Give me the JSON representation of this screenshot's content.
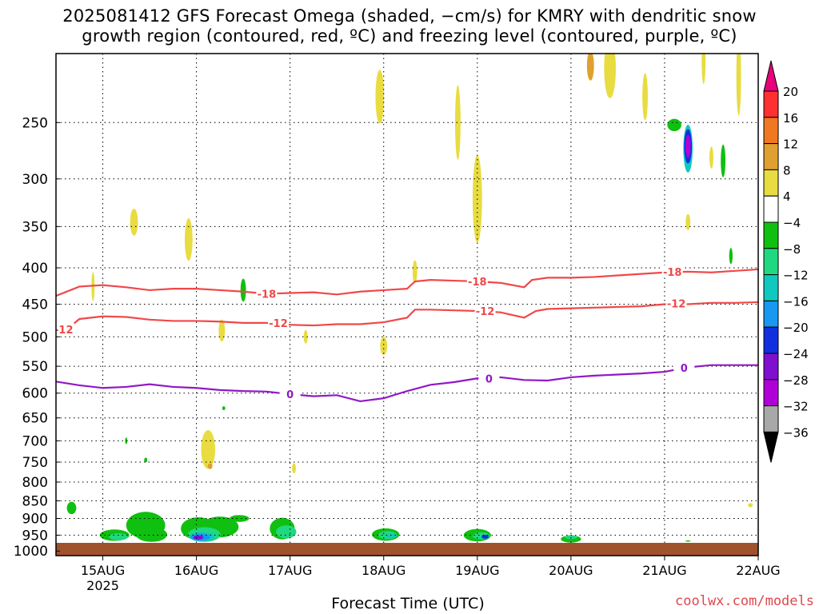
{
  "title": {
    "line1": "2025081412 GFS Forecast Omega (shaded, −cm/s) for KMRY with dendritic snow",
    "line2": "growth region (contoured, red, ºC) and freezing level (contoured, purple, ºC)"
  },
  "credit": "coolwx.com/models",
  "chart_data": {
    "type": "heatmap",
    "xlabel": "Forecast Time (UTC)",
    "ylabel": "",
    "x_ticks": [
      "15AUG",
      "16AUG",
      "17AUG",
      "18AUG",
      "19AUG",
      "20AUG",
      "21AUG",
      "22AUG"
    ],
    "x_year_label": "2025",
    "x_range_hours": [
      -12,
      168
    ],
    "y_ticks": [
      250,
      300,
      350,
      400,
      450,
      500,
      550,
      600,
      650,
      700,
      750,
      800,
      850,
      900,
      950,
      1000
    ],
    "y_range_hpa": [
      200,
      1015
    ],
    "y_scale": "pressure (hPa), decreasing upward",
    "grid": true,
    "colorbar": {
      "labels": [
        "20",
        "16",
        "12",
        "8",
        "4",
        "−4",
        "−8",
        "−12",
        "−16",
        "−20",
        "−24",
        "−28",
        "−32",
        "−36"
      ],
      "colors": [
        "#e8007a",
        "#ff3030",
        "#f07820",
        "#e0a030",
        "#e8dc40",
        "#ffffff",
        "#10c010",
        "#20d880",
        "#10c8c0",
        "#1898f0",
        "#1030e0",
        "#8010d0",
        "#b000d8",
        "#a8a8a8",
        "#000000"
      ]
    },
    "contours": [
      {
        "name": "-18",
        "color": "#f04848",
        "values_hpa": [
          [
            -12,
            438
          ],
          [
            -6,
            425
          ],
          [
            0,
            423
          ],
          [
            6,
            426
          ],
          [
            12,
            430
          ],
          [
            18,
            428
          ],
          [
            24,
            428
          ],
          [
            30,
            430
          ],
          [
            36,
            432
          ],
          [
            42,
            435
          ],
          [
            48,
            434
          ],
          [
            54,
            433
          ],
          [
            60,
            436
          ],
          [
            66,
            432
          ],
          [
            72,
            430
          ],
          [
            78,
            428
          ],
          [
            80,
            418
          ],
          [
            84,
            416
          ],
          [
            90,
            417
          ],
          [
            96,
            418
          ],
          [
            102,
            420
          ],
          [
            108,
            426
          ],
          [
            110,
            416
          ],
          [
            114,
            413
          ],
          [
            120,
            413
          ],
          [
            126,
            412
          ],
          [
            132,
            410
          ],
          [
            138,
            408
          ],
          [
            144,
            406
          ],
          [
            150,
            405
          ],
          [
            156,
            406
          ],
          [
            162,
            404
          ],
          [
            168,
            402
          ]
        ],
        "labels": [
          {
            "text": "-18",
            "x": 42,
            "p": 435
          },
          {
            "text": "-18",
            "x": 96,
            "p": 418
          },
          {
            "text": "-18",
            "x": 146,
            "p": 405
          }
        ]
      },
      {
        "name": "-12",
        "color": "#f04848",
        "values_hpa": [
          [
            -12,
            488
          ],
          [
            -8,
            482
          ],
          [
            -6,
            472
          ],
          [
            0,
            468
          ],
          [
            6,
            469
          ],
          [
            12,
            473
          ],
          [
            18,
            475
          ],
          [
            24,
            475
          ],
          [
            30,
            476
          ],
          [
            36,
            478
          ],
          [
            42,
            478
          ],
          [
            48,
            481
          ],
          [
            54,
            482
          ],
          [
            60,
            480
          ],
          [
            66,
            480
          ],
          [
            72,
            477
          ],
          [
            78,
            470
          ],
          [
            80,
            458
          ],
          [
            84,
            458
          ],
          [
            90,
            459
          ],
          [
            96,
            460
          ],
          [
            102,
            462
          ],
          [
            108,
            470
          ],
          [
            111,
            460
          ],
          [
            114,
            457
          ],
          [
            120,
            456
          ],
          [
            126,
            455
          ],
          [
            132,
            454
          ],
          [
            138,
            453
          ],
          [
            144,
            450
          ],
          [
            150,
            450
          ],
          [
            156,
            448
          ],
          [
            162,
            448
          ],
          [
            168,
            447
          ]
        ],
        "labels": [
          {
            "text": "-12",
            "x": -10,
            "p": 488
          },
          {
            "text": "-12",
            "x": 45,
            "p": 478
          },
          {
            "text": "-12",
            "x": 98,
            "p": 460
          },
          {
            "text": "-12",
            "x": 147,
            "p": 449
          }
        ]
      },
      {
        "name": "0",
        "color": "#9018c8",
        "values_hpa": [
          [
            -12,
            578
          ],
          [
            -6,
            585
          ],
          [
            0,
            590
          ],
          [
            6,
            588
          ],
          [
            12,
            583
          ],
          [
            18,
            588
          ],
          [
            24,
            590
          ],
          [
            30,
            594
          ],
          [
            36,
            596
          ],
          [
            42,
            597
          ],
          [
            48,
            602
          ],
          [
            54,
            606
          ],
          [
            60,
            604
          ],
          [
            66,
            616
          ],
          [
            72,
            610
          ],
          [
            78,
            596
          ],
          [
            84,
            584
          ],
          [
            90,
            579
          ],
          [
            96,
            572
          ],
          [
            102,
            570
          ],
          [
            108,
            575
          ],
          [
            114,
            576
          ],
          [
            120,
            570
          ],
          [
            126,
            567
          ],
          [
            132,
            565
          ],
          [
            138,
            563
          ],
          [
            144,
            560
          ],
          [
            150,
            552
          ],
          [
            156,
            548
          ],
          [
            162,
            548
          ],
          [
            168,
            548
          ]
        ],
        "labels": [
          {
            "text": "0",
            "x": 48,
            "p": 602
          },
          {
            "text": "0",
            "x": 99,
            "p": 572
          },
          {
            "text": "0",
            "x": 149,
            "p": 553
          }
        ]
      }
    ],
    "omega_blobs": [
      {
        "x": -8,
        "p": 870,
        "rx": 1.2,
        "rp": 35,
        "value": -6
      },
      {
        "x": 3,
        "p": 950,
        "rx": 3.8,
        "rp": 35,
        "value": -6
      },
      {
        "x": 4,
        "p": 955,
        "rx": 2.4,
        "rp": 22,
        "value": -8
      },
      {
        "x": 11,
        "p": 920,
        "rx": 5.0,
        "rp": 80,
        "value": -6
      },
      {
        "x": 12.5,
        "p": 948,
        "rx": 4.0,
        "rp": 45,
        "value": -6
      },
      {
        "x": 24.5,
        "p": 930,
        "rx": 4.5,
        "rp": 68,
        "value": -6
      },
      {
        "x": 30,
        "p": 925,
        "rx": 4.8,
        "rp": 62,
        "value": -6
      },
      {
        "x": 26,
        "p": 948,
        "rx": 4.2,
        "rp": 45,
        "value": -8
      },
      {
        "x": 25.5,
        "p": 955,
        "rx": 3.2,
        "rp": 30,
        "value": -12
      },
      {
        "x": 25,
        "p": 956,
        "rx": 2.5,
        "rp": 22,
        "value": -16
      },
      {
        "x": 24.5,
        "p": 957,
        "rx": 1.3,
        "rp": 13,
        "value": -24
      },
      {
        "x": 35,
        "p": 900,
        "rx": 2.5,
        "rp": 20,
        "value": -6
      },
      {
        "x": 46,
        "p": 930,
        "rx": 3.2,
        "rp": 65,
        "value": -6
      },
      {
        "x": 47,
        "p": 940,
        "rx": 2.6,
        "rp": 40,
        "value": -8
      },
      {
        "x": 72.5,
        "p": 948,
        "rx": 3.5,
        "rp": 38,
        "value": -6
      },
      {
        "x": 73,
        "p": 950,
        "rx": 2.4,
        "rp": 25,
        "value": -8
      },
      {
        "x": 74,
        "p": 952,
        "rx": 1.4,
        "rp": 13,
        "value": -12
      },
      {
        "x": 96,
        "p": 950,
        "rx": 3.5,
        "rp": 38,
        "value": -6
      },
      {
        "x": 97,
        "p": 952,
        "rx": 2.2,
        "rp": 22,
        "value": -8
      },
      {
        "x": 98,
        "p": 955,
        "rx": 0.9,
        "rp": 12,
        "value": -20
      },
      {
        "x": 120,
        "p": 962,
        "rx": 2.6,
        "rp": 22,
        "value": -6
      },
      {
        "x": 120,
        "p": 956,
        "rx": 1.6,
        "rp": 12,
        "value": -8
      },
      {
        "x": 27,
        "p": 720,
        "rx": 1.8,
        "rp": 90,
        "value": 4
      },
      {
        "x": 27.5,
        "p": 760,
        "rx": 0.6,
        "rp": 14,
        "value": 8
      },
      {
        "x": 22,
        "p": 365,
        "rx": 1.0,
        "rp": 50,
        "value": 4
      },
      {
        "x": 8,
        "p": 345,
        "rx": 1.0,
        "rp": 30,
        "value": 4
      },
      {
        "x": -2.5,
        "p": 425,
        "rx": 0.4,
        "rp": 40,
        "value": 4
      },
      {
        "x": 30.5,
        "p": 490,
        "rx": 0.8,
        "rp": 35,
        "value": 4
      },
      {
        "x": 36,
        "p": 430,
        "rx": 0.7,
        "rp": 32,
        "value": -6
      },
      {
        "x": 52,
        "p": 500,
        "rx": 0.5,
        "rp": 22,
        "value": 4
      },
      {
        "x": 72,
        "p": 515,
        "rx": 0.9,
        "rp": 30,
        "value": 4
      },
      {
        "x": 71,
        "p": 230,
        "rx": 1.1,
        "rp": 40,
        "value": 4
      },
      {
        "x": 91,
        "p": 250,
        "rx": 0.7,
        "rp": 60,
        "value": 4
      },
      {
        "x": 96,
        "p": 320,
        "rx": 1.2,
        "rp": 90,
        "value": 4
      },
      {
        "x": 80,
        "p": 405,
        "rx": 0.6,
        "rp": 30,
        "value": 4
      },
      {
        "x": 130,
        "p": 210,
        "rx": 1.5,
        "rp": 40,
        "value": 4
      },
      {
        "x": 139,
        "p": 230,
        "rx": 0.7,
        "rp": 35,
        "value": 4
      },
      {
        "x": 150,
        "p": 272,
        "rx": 1.2,
        "rp": 42,
        "value": -12
      },
      {
        "x": 150,
        "p": 270,
        "rx": 1.0,
        "rp": 30,
        "value": -20
      },
      {
        "x": 150,
        "p": 270,
        "rx": 0.7,
        "rp": 20,
        "value": -28
      },
      {
        "x": 146.5,
        "p": 252,
        "rx": 1.8,
        "rp": 10,
        "value": -6
      },
      {
        "x": 159,
        "p": 283,
        "rx": 0.6,
        "rp": 30,
        "value": -6
      },
      {
        "x": 156,
        "p": 280,
        "rx": 0.5,
        "rp": 20,
        "value": 4
      },
      {
        "x": 150,
        "p": 345,
        "rx": 0.6,
        "rp": 18,
        "value": 4
      },
      {
        "x": 161,
        "p": 385,
        "rx": 0.45,
        "rp": 20,
        "value": -6
      },
      {
        "x": 163,
        "p": 215,
        "rx": 0.6,
        "rp": 55,
        "value": 4
      },
      {
        "x": 154,
        "p": 205,
        "rx": 0.5,
        "rp": 30,
        "value": 4
      },
      {
        "x": 166,
        "p": 862,
        "rx": 0.6,
        "rp": 12,
        "value": 4
      },
      {
        "x": 150,
        "p": 968,
        "rx": 0.7,
        "rp": 4,
        "value": -6
      },
      {
        "x": 11,
        "p": 745,
        "rx": 0.4,
        "rp": 12,
        "value": -6
      },
      {
        "x": 6,
        "p": 700,
        "rx": 0.3,
        "rp": 15,
        "value": -6
      },
      {
        "x": 31,
        "p": 630,
        "rx": 0.4,
        "rp": 8,
        "value": -6
      },
      {
        "x": 49,
        "p": 765,
        "rx": 0.5,
        "rp": 25,
        "value": 4
      },
      {
        "x": 125,
        "p": 208,
        "rx": 0.9,
        "rp": 20,
        "value": 8
      }
    ]
  }
}
